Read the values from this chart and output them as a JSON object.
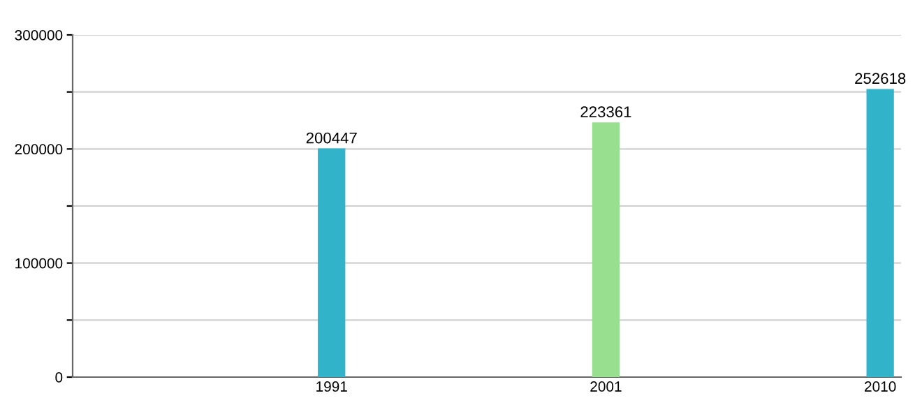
{
  "chart_data": {
    "type": "bar",
    "categories": [
      "1991",
      "2001",
      "2010"
    ],
    "values": [
      200447,
      223361,
      252618
    ],
    "colors": [
      "#31b3c9",
      "#98e08f",
      "#31b3c9"
    ],
    "ylim": [
      0,
      300000
    ],
    "yticks": [
      0,
      {
        "value": 50000,
        "label": null
      },
      100000,
      {
        "value": 150000,
        "label": null
      },
      200000,
      {
        "value": 250000,
        "label": null
      },
      300000
    ],
    "grid": "y",
    "data_labels": true
  }
}
